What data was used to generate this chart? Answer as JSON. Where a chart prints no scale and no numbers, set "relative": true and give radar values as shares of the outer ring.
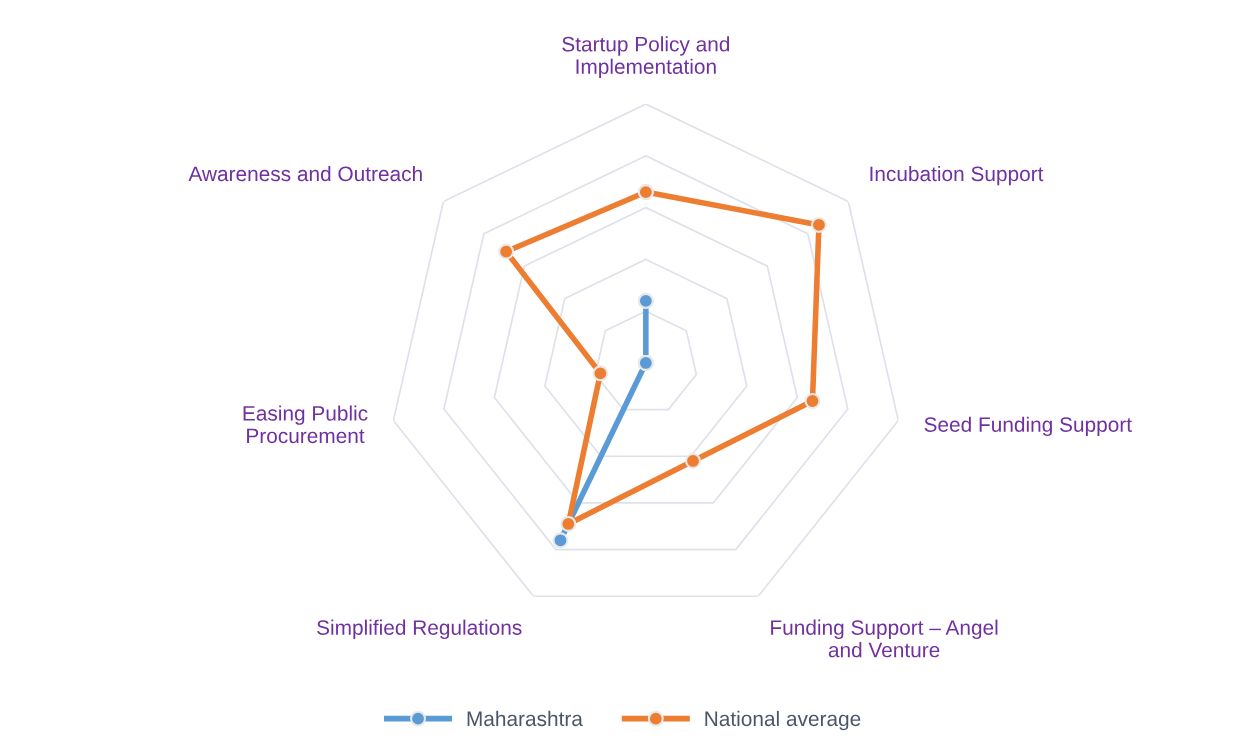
{
  "chart_data": {
    "type": "radar",
    "relative": true,
    "grid": true,
    "legend": "bottom",
    "marker": "circle",
    "line_style": "solid",
    "categories": [
      "Startup Policy and\nImplementation",
      "Incubation Support",
      "Seed Funding Support",
      "Funding Support – Angel\nand Venture",
      "Simplified Regulations",
      "Easing Public\nProcurement",
      "Awareness and Outreach"
    ],
    "series": [
      {
        "name": "Maharashtra",
        "color": "#5b9bd5",
        "values": [
          0.24,
          0,
          0,
          0,
          0.76,
          0,
          0
        ]
      },
      {
        "name": "National average",
        "color": "#ed7d31",
        "values": [
          0.66,
          0.855,
          0.66,
          0.42,
          0.69,
          0.18,
          0.69
        ]
      }
    ]
  }
}
